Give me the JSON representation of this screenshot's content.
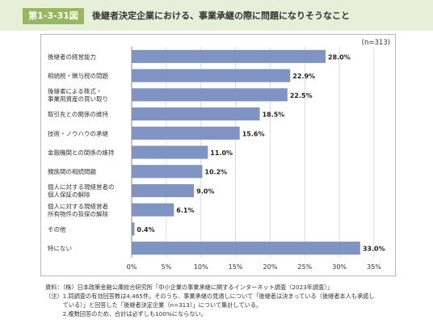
{
  "header": {
    "figure_label": "第1-3-31図",
    "title": "後継者決定企業における、事業承継の際に問題になりそうなこと"
  },
  "sample_note": "(n=313)",
  "chart_data": {
    "type": "bar",
    "orientation": "horizontal",
    "categories": [
      [
        "後継者の経営能力"
      ],
      [
        "相続税・贈与税の問題"
      ],
      [
        "後継者による株式・",
        "事業用資産の買い取り"
      ],
      [
        "取引先との関係の維持"
      ],
      [
        "技術・ノウハウの承継"
      ],
      [
        "金融機関との関係の維持"
      ],
      [
        "親族間の相続問題"
      ],
      [
        "個人に対する現経営者の",
        "個人保証の解除"
      ],
      [
        "個人に対する現経営者",
        "所有物件の担保の解除"
      ],
      [
        "その他"
      ],
      [
        "特にない"
      ]
    ],
    "values": [
      28.0,
      22.9,
      22.5,
      18.5,
      15.6,
      11.0,
      10.2,
      9.0,
      6.1,
      0.4,
      33.0
    ],
    "value_labels": [
      "28.0%",
      "22.9%",
      "22.5%",
      "18.5%",
      "15.6%",
      "11.0%",
      "10.2%",
      "9.0%",
      "6.1%",
      "0.4%",
      "33.0%"
    ],
    "xlim": [
      0,
      35
    ],
    "xticks": [
      "0%",
      "5%",
      "10%",
      "15%",
      "20%",
      "25%",
      "30%",
      "35%"
    ],
    "xtick_values": [
      0,
      5,
      10,
      15,
      20,
      25,
      30,
      35
    ],
    "bar_color": "#8094c4",
    "grid": true
  },
  "notes": [
    "資料：（株）日本政策金融公庫総合研究所「中小企業の事業承継に関するインターネット調査（2023年調査）」",
    "（注）1.同調査の有効回答数は4,465件。そのうち、事業承継の見通しについて「後継者は決まっている（後継者本人も承諾し",
    "　　　ている）」と回答した「後継者決定企業（n=313）」について集計している。",
    "　　　2.複数回答のため、合計は必ずしも100%にならない。"
  ]
}
